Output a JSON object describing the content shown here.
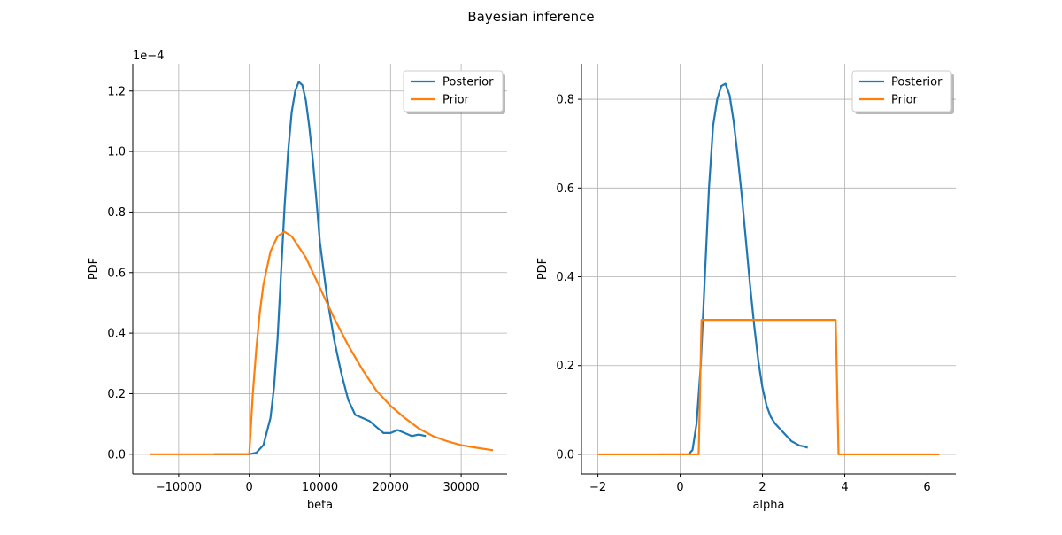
{
  "title": "Bayesian inference",
  "colors": {
    "posterior": "#1f77b4",
    "prior": "#ff7f0e",
    "grid": "#b0b0b0"
  },
  "chart_data": [
    {
      "type": "line",
      "xlabel": "beta",
      "ylabel": "PDF",
      "y_offset_label": "1e−4",
      "y_scale": 0.0001,
      "xlim": [
        -16500,
        36500
      ],
      "ylim": [
        -0.065,
        1.29
      ],
      "xticks": [
        -10000,
        0,
        10000,
        20000,
        30000
      ],
      "xtick_labels": [
        "−10000",
        "0",
        "10000",
        "20000",
        "30000"
      ],
      "yticks": [
        0.0,
        0.2,
        0.4,
        0.6,
        0.8,
        1.0,
        1.2
      ],
      "ytick_labels": [
        "0.0",
        "0.2",
        "0.4",
        "0.6",
        "0.8",
        "1.0",
        "1.2"
      ],
      "grid": true,
      "legend_position": "top-right",
      "series": [
        {
          "name": "Posterior",
          "color": "#1f77b4",
          "x": [
            -5000,
            0,
            1000,
            2000,
            3000,
            3500,
            4000,
            4500,
            5000,
            5500,
            6000,
            6500,
            7000,
            7500,
            8000,
            8500,
            9000,
            9500,
            10000,
            11000,
            12000,
            13000,
            14000,
            15000,
            16000,
            17000,
            18000,
            19000,
            20000,
            21000,
            22000,
            23000,
            24000,
            25000
          ],
          "y": [
            0.0,
            0.0,
            0.005,
            0.03,
            0.12,
            0.22,
            0.38,
            0.6,
            0.82,
            1.0,
            1.13,
            1.2,
            1.23,
            1.22,
            1.17,
            1.08,
            0.97,
            0.84,
            0.7,
            0.52,
            0.38,
            0.27,
            0.18,
            0.13,
            0.12,
            0.11,
            0.09,
            0.07,
            0.07,
            0.08,
            0.07,
            0.06,
            0.065,
            0.06
          ]
        },
        {
          "name": "Prior",
          "color": "#ff7f0e",
          "x": [
            -14000,
            -5000,
            0,
            500,
            1000,
            1500,
            2000,
            3000,
            4000,
            5000,
            6000,
            8000,
            10000,
            12000,
            14000,
            16000,
            18000,
            20000,
            22000,
            24000,
            26000,
            28000,
            30000,
            32000,
            34500
          ],
          "y": [
            0.0,
            0.0,
            0.0,
            0.2,
            0.35,
            0.47,
            0.56,
            0.67,
            0.72,
            0.735,
            0.72,
            0.65,
            0.55,
            0.45,
            0.36,
            0.28,
            0.21,
            0.16,
            0.12,
            0.085,
            0.06,
            0.043,
            0.03,
            0.022,
            0.013
          ]
        }
      ]
    },
    {
      "type": "line",
      "xlabel": "alpha",
      "ylabel": "PDF",
      "y_offset_label": "",
      "y_scale": 1,
      "xlim": [
        -2.4,
        6.7
      ],
      "ylim": [
        -0.044,
        0.88
      ],
      "xticks": [
        -2,
        0,
        2,
        4,
        6
      ],
      "xtick_labels": [
        "−2",
        "0",
        "2",
        "4",
        "6"
      ],
      "yticks": [
        0.0,
        0.2,
        0.4,
        0.6,
        0.8
      ],
      "ytick_labels": [
        "0.0",
        "0.2",
        "0.4",
        "0.6",
        "0.8"
      ],
      "grid": true,
      "legend_position": "top-right",
      "series": [
        {
          "name": "Posterior",
          "color": "#1f77b4",
          "x": [
            -0.5,
            0.2,
            0.3,
            0.4,
            0.5,
            0.6,
            0.7,
            0.8,
            0.9,
            1.0,
            1.1,
            1.2,
            1.3,
            1.4,
            1.5,
            1.6,
            1.7,
            1.8,
            1.9,
            2.0,
            2.1,
            2.2,
            2.3,
            2.4,
            2.5,
            2.6,
            2.7,
            2.8,
            2.9,
            3.0,
            3.1
          ],
          "y": [
            0.0,
            0.0,
            0.01,
            0.07,
            0.2,
            0.4,
            0.6,
            0.74,
            0.8,
            0.83,
            0.835,
            0.81,
            0.75,
            0.67,
            0.58,
            0.48,
            0.38,
            0.29,
            0.21,
            0.15,
            0.11,
            0.085,
            0.07,
            0.06,
            0.05,
            0.04,
            0.03,
            0.025,
            0.02,
            0.018,
            0.015
          ]
        },
        {
          "name": "Prior",
          "color": "#ff7f0e",
          "x": [
            -2.0,
            0.45,
            0.52,
            3.78,
            3.85,
            6.3
          ],
          "y": [
            0.0,
            0.0,
            0.303,
            0.303,
            0.0,
            0.0
          ]
        }
      ]
    }
  ]
}
